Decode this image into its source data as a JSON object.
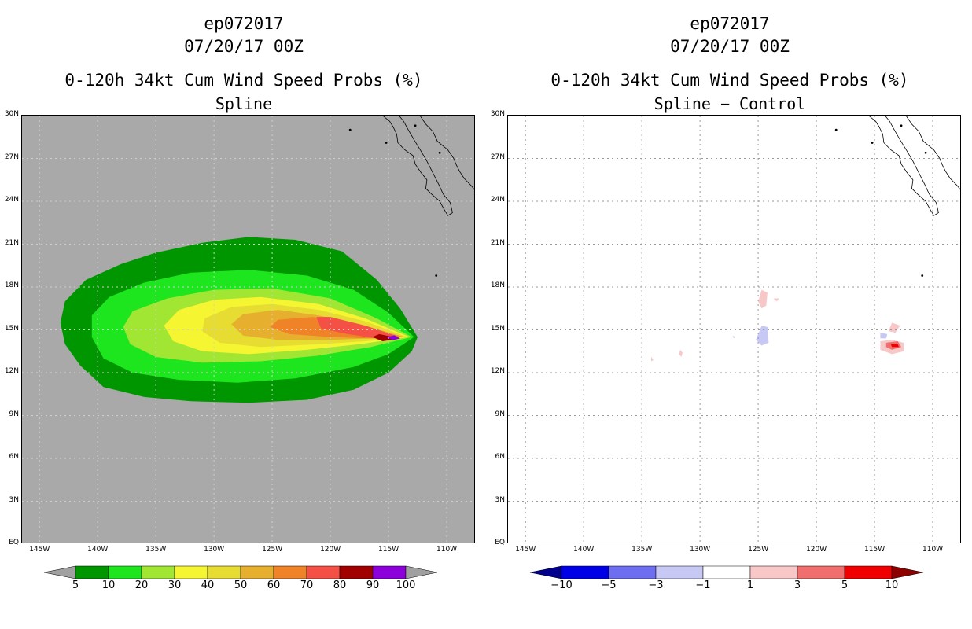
{
  "panels": [
    {
      "storm": "ep072017",
      "date": "07/20/17 00Z",
      "product": "0-120h 34kt Cum Wind Speed Probs (%)",
      "subtitle": "Spline",
      "background": "#a9a9a9",
      "colorbar": {
        "labels": [
          "5",
          "10",
          "20",
          "30",
          "40",
          "50",
          "60",
          "70",
          "80",
          "90",
          "100"
        ],
        "colors": [
          "#009600",
          "#1ee61e",
          "#a0e632",
          "#f5f532",
          "#e6dc32",
          "#e6af2d",
          "#f08228",
          "#f55046",
          "#a00000",
          "#8c00dc"
        ],
        "end_colors": [
          "#a0a0a0",
          "#a0a0a0"
        ]
      }
    },
    {
      "storm": "ep072017",
      "date": "07/20/17 00Z",
      "product": "0-120h 34kt Cum Wind Speed Probs (%)",
      "subtitle": "Spline − Control",
      "background": "#ffffff",
      "colorbar": {
        "labels": [
          "−10",
          "−5",
          "−3",
          "−1",
          "1",
          "3",
          "5",
          "10"
        ],
        "colors": [
          "#0000e6",
          "#6e6ef0",
          "#c8c8f5",
          "#ffffff",
          "#f8c8c8",
          "#f06e6e",
          "#f00000"
        ],
        "end_colors": [
          "#00008c",
          "#8c0000"
        ]
      }
    }
  ],
  "axes": {
    "lat_labels": [
      "30N",
      "27N",
      "24N",
      "21N",
      "18N",
      "15N",
      "12N",
      "9N",
      "6N",
      "3N",
      "EQ"
    ],
    "lon_labels": [
      "145W",
      "140W",
      "135W",
      "130W",
      "125W",
      "120W",
      "115W",
      "110W"
    ],
    "lat_range": [
      0,
      30
    ],
    "lon_range": [
      -146.5,
      -107.5
    ]
  },
  "chart_data": [
    {
      "type": "heatmap",
      "title": "ep072017 07/20/17 00Z 0-120h 34kt Cum Wind Speed Probs (%) Spline",
      "variable": "34kt cumulative wind speed probability (%)",
      "levels": [
        5,
        10,
        20,
        30,
        40,
        50,
        60,
        70,
        80,
        90,
        100
      ],
      "contours": [
        {
          "level": 5,
          "lonlat": [
            [
              -112.5,
              14.5
            ],
            [
              -114,
              16.5
            ],
            [
              -116,
              18.5
            ],
            [
              -119,
              20.5
            ],
            [
              -123,
              21.3
            ],
            [
              -127,
              21.5
            ],
            [
              -131,
              21.1
            ],
            [
              -135,
              20.4
            ],
            [
              -138,
              19.6
            ],
            [
              -141,
              18.5
            ],
            [
              -142.8,
              17
            ],
            [
              -143.2,
              15.5
            ],
            [
              -142.8,
              14
            ],
            [
              -141.5,
              12.5
            ],
            [
              -139.5,
              11
            ],
            [
              -136,
              10.3
            ],
            [
              -132,
              10
            ],
            [
              -127,
              9.9
            ],
            [
              -122,
              10.1
            ],
            [
              -118,
              10.8
            ],
            [
              -115,
              12
            ],
            [
              -113,
              13.5
            ]
          ]
        },
        {
          "level": 10,
          "lonlat": [
            [
              -112.8,
              14.5
            ],
            [
              -115,
              16.2
            ],
            [
              -118,
              17.8
            ],
            [
              -122,
              18.8
            ],
            [
              -127,
              19.2
            ],
            [
              -132,
              19
            ],
            [
              -136,
              18.3
            ],
            [
              -139,
              17.3
            ],
            [
              -140.5,
              16
            ],
            [
              -140.5,
              14.5
            ],
            [
              -139.5,
              13
            ],
            [
              -137,
              12
            ],
            [
              -133,
              11.5
            ],
            [
              -128,
              11.3
            ],
            [
              -123,
              11.6
            ],
            [
              -118,
              12.4
            ],
            [
              -115,
              13.3
            ]
          ]
        },
        {
          "level": 20,
          "lonlat": [
            [
              -113,
              14.5
            ],
            [
              -116,
              15.8
            ],
            [
              -120,
              17.2
            ],
            [
              -125,
              17.9
            ],
            [
              -130,
              17.8
            ],
            [
              -134,
              17.2
            ],
            [
              -137,
              16.3
            ],
            [
              -137.8,
              15.2
            ],
            [
              -137.2,
              14
            ],
            [
              -135,
              13.1
            ],
            [
              -131,
              12.7
            ],
            [
              -126,
              12.8
            ],
            [
              -121,
              13.2
            ],
            [
              -116.5,
              13.8
            ]
          ]
        },
        {
          "level": 30,
          "lonlat": [
            [
              -113.2,
              14.5
            ],
            [
              -117,
              15.8
            ],
            [
              -121,
              16.8
            ],
            [
              -126,
              17.3
            ],
            [
              -130,
              17.1
            ],
            [
              -133,
              16.4
            ],
            [
              -134.3,
              15.3
            ],
            [
              -133.5,
              14.2
            ],
            [
              -131,
              13.5
            ],
            [
              -127,
              13.3
            ],
            [
              -122,
              13.6
            ],
            [
              -117.5,
              14
            ]
          ]
        },
        {
          "level": 40,
          "lonlat": [
            [
              -113.4,
              14.5
            ],
            [
              -117,
              15.6
            ],
            [
              -121,
              16.4
            ],
            [
              -125,
              16.8
            ],
            [
              -128.5,
              16.6
            ],
            [
              -130.8,
              15.8
            ],
            [
              -131,
              14.9
            ],
            [
              -129.5,
              14.1
            ],
            [
              -126,
              13.8
            ],
            [
              -121,
              14
            ],
            [
              -117,
              14.2
            ]
          ]
        },
        {
          "level": 50,
          "lonlat": [
            [
              -113.6,
              14.5
            ],
            [
              -117.5,
              15.4
            ],
            [
              -121,
              16
            ],
            [
              -124.5,
              16.4
            ],
            [
              -127.5,
              16.1
            ],
            [
              -128.5,
              15.4
            ],
            [
              -127.5,
              14.6
            ],
            [
              -124.5,
              14.3
            ],
            [
              -120,
              14.3
            ],
            [
              -116.5,
              14.4
            ]
          ]
        },
        {
          "level": 60,
          "lonlat": [
            [
              -113.8,
              14.5
            ],
            [
              -118,
              15.3
            ],
            [
              -121.5,
              15.9
            ],
            [
              -124.5,
              15.7
            ],
            [
              -125.2,
              15.2
            ],
            [
              -123.5,
              14.7
            ],
            [
              -120,
              14.5
            ],
            [
              -116.5,
              14.4
            ]
          ]
        },
        {
          "level": 70,
          "lonlat": [
            [
              -114,
              14.5
            ],
            [
              -117,
              15.3
            ],
            [
              -120,
              15.9
            ],
            [
              -121.2,
              15.9
            ],
            [
              -120.8,
              15.1
            ],
            [
              -118.5,
              14.7
            ],
            [
              -116,
              14.4
            ]
          ]
        },
        {
          "level": 80,
          "lonlat": [
            [
              -114,
              14.4
            ],
            [
              -115.8,
              14.7
            ],
            [
              -116.4,
              14.5
            ],
            [
              -115.5,
              14.2
            ]
          ]
        },
        {
          "level": 90,
          "lonlat": [
            [
              -114,
              14.4
            ],
            [
              -114.5,
              14.62
            ],
            [
              -115.2,
              14.48
            ],
            [
              -114.6,
              14.28
            ]
          ]
        }
      ]
    },
    {
      "type": "heatmap",
      "title": "ep072017 07/20/17 00Z 0-120h 34kt Cum Wind Speed Probs (%) Spline − Control",
      "variable": "probability difference (%)",
      "levels": [
        -10,
        -5,
        -3,
        -1,
        1,
        3,
        5,
        10
      ],
      "features": [
        {
          "category": "1 to 3",
          "lonlat": [
            [
              -124.7,
              17.8
            ],
            [
              -124.2,
              17.6
            ],
            [
              -124.3,
              16.7
            ],
            [
              -124.7,
              16.5
            ],
            [
              -125,
              17
            ]
          ]
        },
        {
          "category": "1 to 3",
          "lonlat": [
            [
              -123.7,
              17.2
            ],
            [
              -123.2,
              17.2
            ],
            [
              -123.4,
              17
            ]
          ]
        },
        {
          "category": "-3 to -1",
          "lonlat": [
            [
              -124.7,
              15.3
            ],
            [
              -124.2,
              15.2
            ],
            [
              -124.1,
              14.1
            ],
            [
              -124.7,
              13.9
            ],
            [
              -125.2,
              14.3
            ]
          ]
        },
        {
          "category": "-3 to -1",
          "lonlat": [
            [
              -127.2,
              14.6
            ],
            [
              -127,
              14.5
            ],
            [
              -127.1,
              14.4
            ]
          ]
        },
        {
          "category": "1 to 3",
          "lonlat": [
            [
              -131.7,
              13.6
            ],
            [
              -131.5,
              13.4
            ],
            [
              -131.6,
              13.1
            ],
            [
              -131.8,
              13.3
            ]
          ]
        },
        {
          "category": "1 to 3",
          "lonlat": [
            [
              -134.2,
              13.1
            ],
            [
              -134,
              12.9
            ],
            [
              -134.2,
              12.8
            ]
          ]
        },
        {
          "category": "1 to 3",
          "lonlat": [
            [
              -113.5,
              15.5
            ],
            [
              -112.8,
              15.3
            ],
            [
              -113.2,
              14.8
            ],
            [
              -113.8,
              14.9
            ]
          ]
        },
        {
          "category": "-3 to -1",
          "lonlat": [
            [
              -114.5,
              14.8
            ],
            [
              -113.9,
              14.7
            ],
            [
              -114,
              14.4
            ],
            [
              -114.5,
              14.4
            ]
          ]
        },
        {
          "category": "1 to 3",
          "lonlat": [
            [
              -114.5,
              14.2
            ],
            [
              -113.5,
              14.3
            ],
            [
              -112.5,
              14.1
            ],
            [
              -112.5,
              13.5
            ],
            [
              -113.5,
              13.3
            ],
            [
              -114.5,
              13.6
            ]
          ]
        },
        {
          "category": "3 to 5",
          "lonlat": [
            [
              -114,
              14.1
            ],
            [
              -113,
              14.2
            ],
            [
              -112.7,
              13.8
            ],
            [
              -113.5,
              13.6
            ],
            [
              -114,
              13.8
            ]
          ]
        },
        {
          "category": "5 to 10",
          "lonlat": [
            [
              -113.6,
              14
            ],
            [
              -113,
              14
            ],
            [
              -112.9,
              13.8
            ],
            [
              -113.5,
              13.8
            ]
          ]
        }
      ]
    }
  ]
}
